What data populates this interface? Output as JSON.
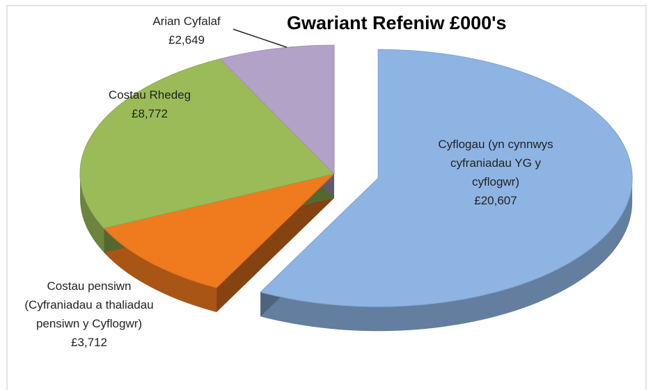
{
  "chart_data": {
    "type": "pie",
    "title": "Gwariant Refeniw £000's",
    "categories": [
      "Cyflogau (yn cynnwys cyfraniadau YG y cyflogwr)",
      "Costau pensiwn (Cyfraniadau a thaliadau pensiwn y Cyflogwr)",
      "Costau Rhedeg",
      "Arian Cyfalaf"
    ],
    "values": [
      20607,
      3712,
      8772,
      2649
    ],
    "value_labels": [
      "£20,607",
      "£3,712",
      "£8,772",
      "£2,649"
    ],
    "colors": [
      "#8eb4e3",
      "#f07a1e",
      "#9bbb59",
      "#b3a2c7"
    ]
  }
}
